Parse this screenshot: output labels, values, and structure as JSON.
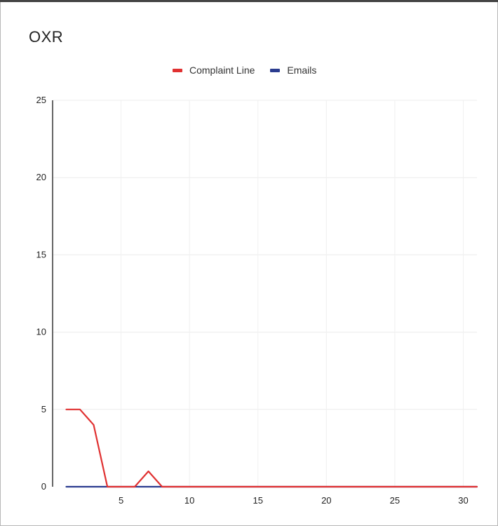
{
  "chart_data": {
    "type": "line",
    "title": "OXR",
    "xlabel": "",
    "ylabel": "",
    "xlim": [
      0,
      31
    ],
    "ylim": [
      0,
      25
    ],
    "x_ticks": [
      5,
      10,
      15,
      20,
      25,
      30
    ],
    "y_ticks": [
      0,
      5,
      10,
      15,
      20,
      25
    ],
    "grid": true,
    "legend_position": "top-center",
    "series": [
      {
        "name": "Complaint Line",
        "color": "#e03131",
        "x": [
          1,
          2,
          3,
          4,
          5,
          6,
          7,
          8,
          9,
          10,
          11,
          12,
          13,
          14,
          15,
          16,
          17,
          18,
          19,
          20,
          21,
          22,
          23,
          24,
          25,
          26,
          27,
          28,
          29,
          30,
          31
        ],
        "values": [
          5,
          5,
          4,
          0,
          0,
          0,
          1,
          0,
          0,
          0,
          0,
          0,
          0,
          0,
          0,
          0,
          0,
          0,
          0,
          0,
          0,
          0,
          0,
          0,
          0,
          0,
          0,
          0,
          0,
          0,
          0
        ]
      },
      {
        "name": "Emails",
        "color": "#2b3c8f",
        "x": [
          1,
          2,
          3,
          4,
          5,
          6,
          7,
          8,
          9,
          10,
          11,
          12,
          13,
          14,
          15,
          16,
          17,
          18,
          19,
          20,
          21,
          22,
          23,
          24,
          25,
          26,
          27,
          28,
          29,
          30,
          31
        ],
        "values": [
          0,
          0,
          0,
          0,
          0,
          0,
          0,
          0,
          0,
          0,
          0,
          0,
          0,
          0,
          0,
          0,
          0,
          0,
          0,
          0,
          0,
          0,
          0,
          0,
          0,
          0,
          0,
          0,
          0,
          0,
          0
        ]
      }
    ]
  }
}
